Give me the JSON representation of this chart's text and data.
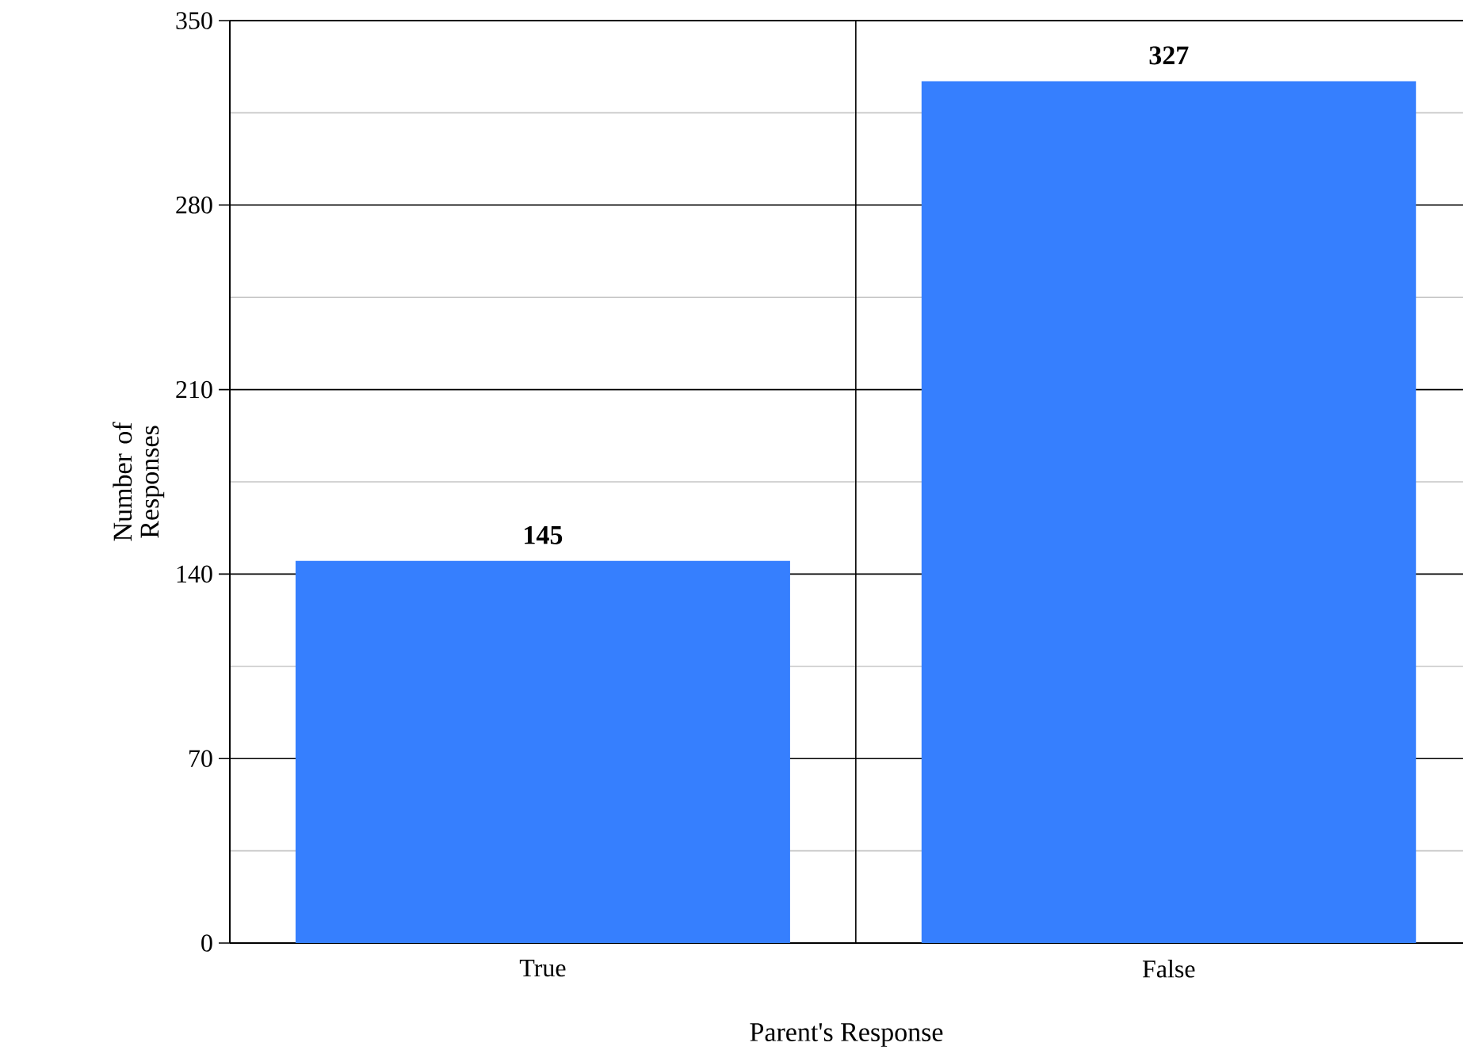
{
  "chart_data": {
    "type": "bar",
    "xlabel": "Parent's Response",
    "ylabel": "Number of Responses",
    "categories": [
      "True",
      "False"
    ],
    "values": [
      145,
      327
    ],
    "color": "#367ffe",
    "ylim": [
      0,
      350
    ],
    "yticks": [
      0,
      70,
      140,
      210,
      280,
      350
    ],
    "grid": true,
    "data_labels": true
  }
}
